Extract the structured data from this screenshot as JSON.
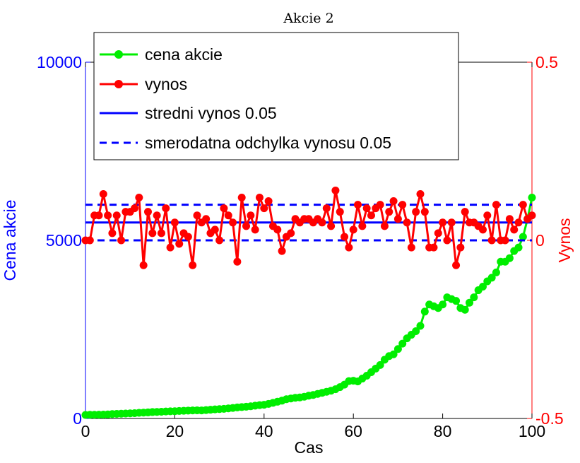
{
  "chart_data": {
    "type": "line",
    "title": "Akcie 2",
    "xlabel": "Cas",
    "ylabel_left": "Cena akcie",
    "ylabel_right": "Vynos",
    "xlim": [
      0,
      100
    ],
    "ylim_left": [
      0,
      10000
    ],
    "ylim_right": [
      -0.5,
      0.5
    ],
    "x_ticks": [
      "0",
      "20",
      "40",
      "60",
      "80",
      "100"
    ],
    "y_left_ticks": [
      "0",
      "5000",
      "10000"
    ],
    "y_right_ticks": [
      "-0.5",
      "0",
      "0.5"
    ],
    "grid": false,
    "legend_position": "top-left",
    "colors": {
      "left_axis": "#0000ff",
      "right_axis": "#ff0000",
      "price": "#00ee00",
      "return": "#ff0000",
      "mean": "#0000ff"
    },
    "series": [
      {
        "name": "cena akcie",
        "axis": "left",
        "values": [
          100,
          103,
          104,
          106,
          110,
          115,
          125,
          130,
          135,
          140,
          143,
          150,
          158,
          163,
          170,
          180,
          184,
          189,
          196,
          200,
          204,
          210,
          215,
          220,
          225,
          229,
          225,
          235,
          245,
          255,
          262,
          270,
          283,
          295,
          310,
          320,
          330,
          343,
          360,
          375,
          385,
          410,
          440,
          470,
          500,
          540,
          560,
          580,
          590,
          610,
          640,
          660,
          690,
          720,
          750,
          780,
          820,
          880,
          950,
          1050,
          1060,
          1040,
          1120,
          1200,
          1300,
          1400,
          1500,
          1650,
          1750,
          1800,
          1950,
          2100,
          2250,
          2350,
          2450,
          2600,
          3000,
          3200,
          3150,
          3100,
          3200,
          3400,
          3350,
          3300,
          3100,
          3050,
          3250,
          3400,
          3600,
          3700,
          3850,
          3950,
          4100,
          4400,
          4400,
          4500,
          4700,
          4800,
          5100,
          5600,
          6200
        ]
      },
      {
        "name": "vynos",
        "axis": "right",
        "values": [
          0.0,
          0.0,
          0.07,
          0.07,
          0.13,
          0.07,
          0.02,
          0.07,
          0.0,
          0.08,
          0.08,
          0.09,
          0.12,
          -0.07,
          0.08,
          0.02,
          0.07,
          0.02,
          0.09,
          -0.02,
          0.05,
          -0.01,
          0.02,
          0.01,
          -0.07,
          0.07,
          0.05,
          0.06,
          0.02,
          0.03,
          0.0,
          0.09,
          0.07,
          0.05,
          -0.06,
          0.12,
          0.04,
          0.07,
          0.03,
          0.12,
          0.09,
          0.11,
          0.04,
          0.03,
          -0.03,
          0.01,
          0.02,
          0.06,
          0.05,
          0.06,
          0.06,
          0.05,
          0.06,
          0.05,
          0.09,
          0.04,
          0.14,
          0.08,
          0.01,
          -0.02,
          0.03,
          0.1,
          0.04,
          0.09,
          0.07,
          0.09,
          0.1,
          0.04,
          0.08,
          0.11,
          0.06,
          0.1,
          0.05,
          -0.02,
          0.08,
          0.13,
          0.08,
          -0.02,
          -0.02,
          0.02,
          0.05,
          0.0,
          0.05,
          -0.07,
          -0.02,
          0.08,
          0.05,
          0.05,
          0.04,
          0.03,
          0.07,
          0.0,
          0.1,
          0.0,
          0.0,
          0.06,
          0.03,
          0.05,
          0.1,
          0.06,
          0.07
        ]
      },
      {
        "name": "stredni vynos 0.05",
        "axis": "right",
        "style": "solid",
        "values": [
          0.05,
          0.05
        ]
      },
      {
        "name": "smerodatna odchylka vynosu 0.05",
        "axis": "right",
        "style": "dashed",
        "values_upper": [
          0.1,
          0.1
        ],
        "values_lower": [
          0.0,
          0.0
        ]
      }
    ]
  }
}
